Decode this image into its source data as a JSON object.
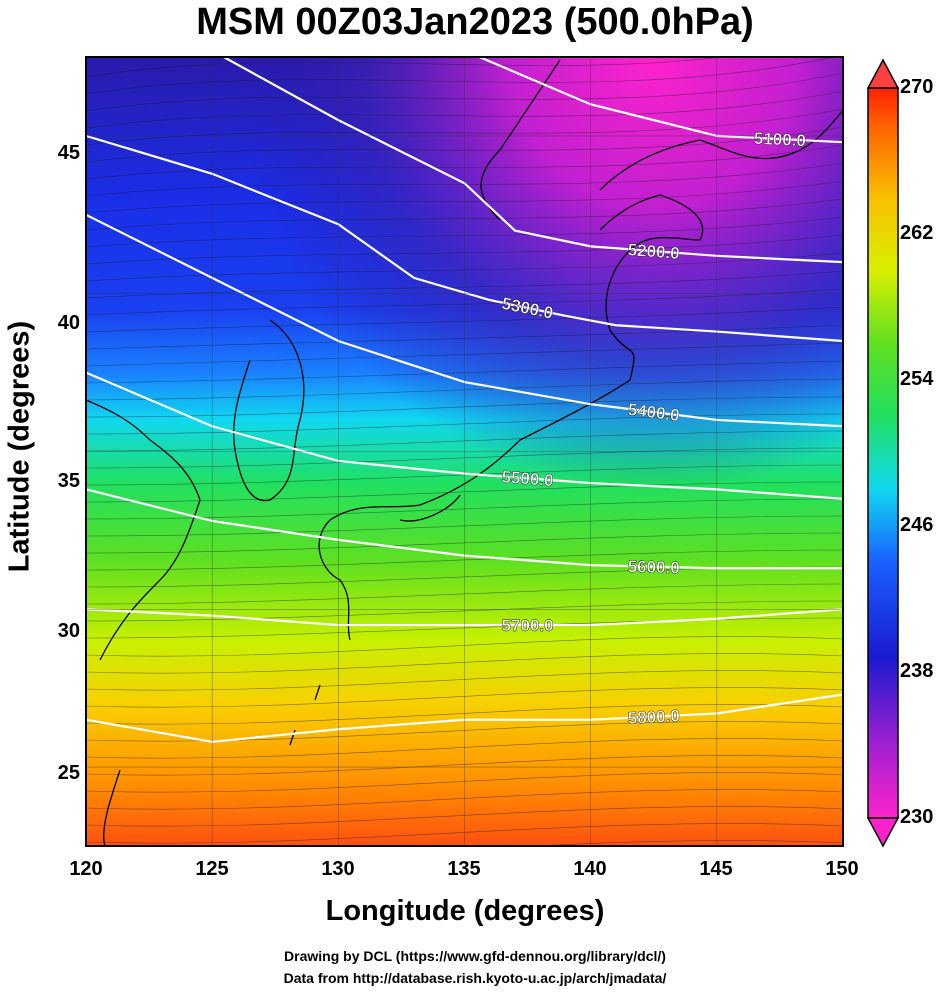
{
  "title": "MSM 00Z03Jan2023 (500.0hPa)",
  "axes": {
    "xlabel": "Longitude (degrees)",
    "ylabel": "Latitude  (degrees)",
    "x_ticks": [
      "120",
      "125",
      "130",
      "135",
      "140",
      "145",
      "150"
    ],
    "y_ticks": [
      "25",
      "30",
      "35",
      "40",
      "45"
    ],
    "xlim": [
      120,
      150
    ],
    "ylim": [
      22.5,
      47.5
    ]
  },
  "colorbar": {
    "ticks": [
      "270",
      "262",
      "254",
      "246",
      "238",
      "230"
    ],
    "range": [
      230,
      270
    ]
  },
  "contour_labels": [
    "5100.0",
    "5200.0",
    "5300.0",
    "5400.0",
    "5500.0",
    "5600.0",
    "5700.0",
    "5800.0"
  ],
  "credits": {
    "line1": "Drawing by DCL (https://www.gfd-dennou.org/library/dcl/)",
    "line2": "Data from http://database.rish.kyoto-u.ac.jp/arch/jmadata/"
  },
  "chart_data": {
    "type": "heatmap",
    "title": "MSM 00Z03Jan2023 (500.0hPa)",
    "xlabel": "Longitude (degrees)",
    "ylabel": "Latitude  (degrees)",
    "xlim": [
      120,
      150
    ],
    "ylim": [
      22.5,
      47.5
    ],
    "colorbar_range": [
      230,
      270
    ],
    "contours": [
      {
        "label": "5100.0",
        "points": [
          [
            135,
            47.7
          ],
          [
            140,
            46.0
          ],
          [
            145,
            45.0
          ],
          [
            150,
            44.8
          ]
        ]
      },
      {
        "label": "5200.0",
        "points": [
          [
            125,
            47.7
          ],
          [
            130,
            45.5
          ],
          [
            135,
            43.5
          ],
          [
            137,
            42.0
          ],
          [
            140,
            41.5
          ],
          [
            145,
            41.2
          ],
          [
            150,
            41.0
          ]
        ]
      },
      {
        "label": "5300.0",
        "points": [
          [
            120,
            45.0
          ],
          [
            125,
            43.8
          ],
          [
            130,
            42.2
          ],
          [
            133,
            40.5
          ],
          [
            136,
            39.8
          ],
          [
            139,
            39.3
          ],
          [
            141,
            39.0
          ],
          [
            145,
            38.8
          ],
          [
            150,
            38.5
          ]
        ]
      },
      {
        "label": "5400.0",
        "points": [
          [
            120,
            42.5
          ],
          [
            125,
            40.5
          ],
          [
            130,
            38.5
          ],
          [
            135,
            37.2
          ],
          [
            140,
            36.5
          ],
          [
            145,
            36.0
          ],
          [
            150,
            35.8
          ]
        ]
      },
      {
        "label": "5500.0",
        "points": [
          [
            120,
            37.5
          ],
          [
            125,
            35.8
          ],
          [
            130,
            34.7
          ],
          [
            135,
            34.3
          ],
          [
            140,
            34.0
          ],
          [
            145,
            33.8
          ],
          [
            150,
            33.5
          ]
        ]
      },
      {
        "label": "5600.0",
        "points": [
          [
            120,
            33.8
          ],
          [
            125,
            32.8
          ],
          [
            130,
            32.2
          ],
          [
            135,
            31.7
          ],
          [
            140,
            31.4
          ],
          [
            145,
            31.3
          ],
          [
            150,
            31.3
          ]
        ]
      },
      {
        "label": "5700.0",
        "points": [
          [
            120,
            30.0
          ],
          [
            125,
            29.8
          ],
          [
            130,
            29.5
          ],
          [
            135,
            29.5
          ],
          [
            140,
            29.5
          ],
          [
            145,
            29.7
          ],
          [
            150,
            30.0
          ]
        ]
      },
      {
        "label": "5800.0",
        "points": [
          [
            120,
            26.5
          ],
          [
            125,
            25.8
          ],
          [
            130,
            26.2
          ],
          [
            135,
            26.5
          ],
          [
            140,
            26.5
          ],
          [
            145,
            26.7
          ],
          [
            150,
            27.3
          ]
        ]
      }
    ]
  },
  "colors": {
    "field": [
      "#ff22cc",
      "#b020d0",
      "#2a1aaa",
      "#1a2ee8",
      "#1a80ff",
      "#10d8f0",
      "#20e060",
      "#60e020",
      "#c8f000",
      "#f8d000",
      "#ff9000",
      "#ff5000"
    ]
  }
}
